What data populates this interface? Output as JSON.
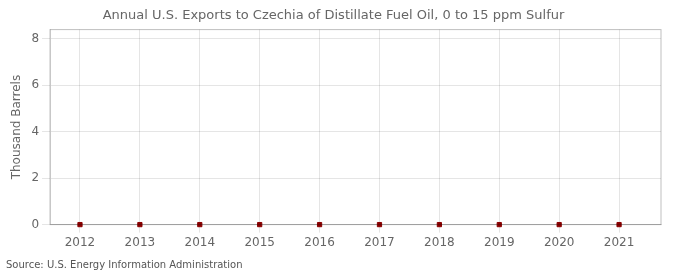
{
  "chart_data": {
    "type": "scatter",
    "title": "Annual U.S. Exports to Czechia of Distillate Fuel Oil, 0 to 15 ppm Sulfur",
    "ylabel": "Thousand Barrels",
    "annotation": "Source: U.S. Energy Information Administration",
    "x": [
      2012,
      2013,
      2014,
      2015,
      2016,
      2017,
      2018,
      2019,
      2020,
      2021
    ],
    "values": [
      0,
      0,
      0,
      0,
      0,
      0,
      0,
      0,
      0,
      0
    ],
    "color": "#8B0000",
    "marker": "square",
    "xlim": [
      2011.5,
      2021.7
    ],
    "ylim": [
      0,
      8.4
    ],
    "xticks": [
      2012,
      2013,
      2014,
      2015,
      2016,
      2017,
      2018,
      2019,
      2020,
      2021
    ],
    "yticks": [
      0,
      2,
      4,
      6,
      8
    ],
    "grid": true
  }
}
